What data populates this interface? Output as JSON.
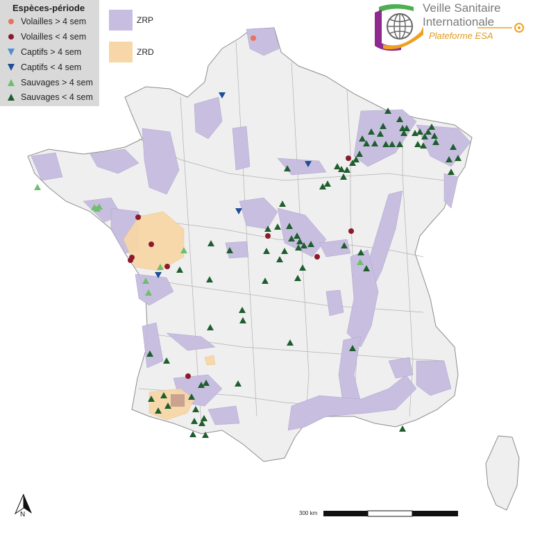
{
  "legend": {
    "title": "Espèces-période",
    "items": [
      {
        "label": "Volailles > 4 sem",
        "marker": "circle",
        "color": "#e8735a"
      },
      {
        "label": "Volailles < 4 sem",
        "marker": "circle",
        "color": "#8b1a2b"
      },
      {
        "label": "Captifs > 4 sem",
        "marker": "triangle-down",
        "color": "#4e8fce"
      },
      {
        "label": "Captifs < 4 sem",
        "marker": "triangle-down",
        "color": "#1f4e96"
      },
      {
        "label": "Sauvages > 4 sem",
        "marker": "triangle-up",
        "color": "#6cbf6c"
      },
      {
        "label": "Sauvages < 4 sem",
        "marker": "triangle-up",
        "color": "#1e5e2e"
      }
    ]
  },
  "zones": [
    {
      "label": "ZRP",
      "color": "#c6bde0"
    },
    {
      "label": "ZRD",
      "color": "#f7d7a8"
    }
  ],
  "logo": {
    "line1": "Veille Sanitaire",
    "line2": "Internationale",
    "line3": "Plateforme ESA",
    "colors": {
      "purple": "#8e2a8e",
      "green": "#4caf50",
      "orange": "#f0a020",
      "gray": "#7a7a7a"
    }
  },
  "scale": {
    "label": "300 km"
  },
  "north": {
    "label": "N"
  },
  "colors": {
    "land": "#efefef",
    "border": "#8c8c8c",
    "zrp": "#c6bde0",
    "zrd": "#f7d7a8"
  }
}
